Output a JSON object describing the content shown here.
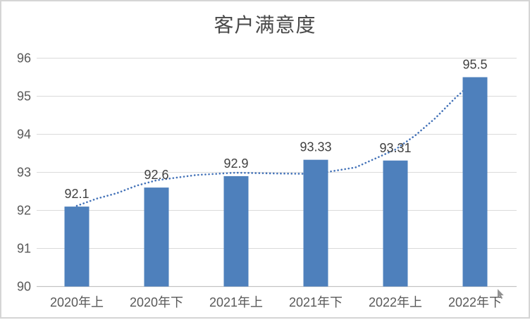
{
  "window": {
    "background": "#ffffff",
    "frame_border_color": "#d5d5d5"
  },
  "chart_data": {
    "type": "bar",
    "title": "客户满意度",
    "categories": [
      "2020年上",
      "2020年下",
      "2021年上",
      "2021年下",
      "2022年上",
      "2022年下"
    ],
    "series": [
      {
        "name": "客户满意度",
        "values": [
          92.1,
          92.6,
          92.9,
          93.33,
          93.31,
          95.5
        ]
      }
    ],
    "value_labels": [
      "92.1",
      "92.6",
      "92.9",
      "93.33",
      "93.31",
      "95.5"
    ],
    "xlabel": "",
    "ylabel": "",
    "ylim": [
      90,
      96
    ],
    "yticks": [
      90,
      91,
      92,
      93,
      94,
      95,
      96
    ],
    "grid": true,
    "legend": "none",
    "bar_color": "#4e80bc",
    "gridline_color": "#dadada",
    "axis_line_color": "#c3c3c3",
    "tick_label_color": "#595959",
    "value_label_color": "#404040",
    "title_color": "#494949",
    "trendline": {
      "style": "dotted",
      "color": "#4372b8",
      "points": [
        [
          0,
          92.12
        ],
        [
          0.25,
          92.31
        ],
        [
          0.5,
          92.45
        ],
        [
          0.75,
          92.65
        ],
        [
          1,
          92.79
        ],
        [
          1.5,
          92.93
        ],
        [
          2,
          92.99
        ],
        [
          2.5,
          92.97
        ],
        [
          3,
          92.96
        ],
        [
          3.5,
          93.13
        ],
        [
          4,
          93.6
        ],
        [
          4.25,
          93.97
        ],
        [
          4.5,
          94.42
        ],
        [
          4.75,
          94.95
        ],
        [
          5,
          95.42
        ]
      ]
    }
  }
}
